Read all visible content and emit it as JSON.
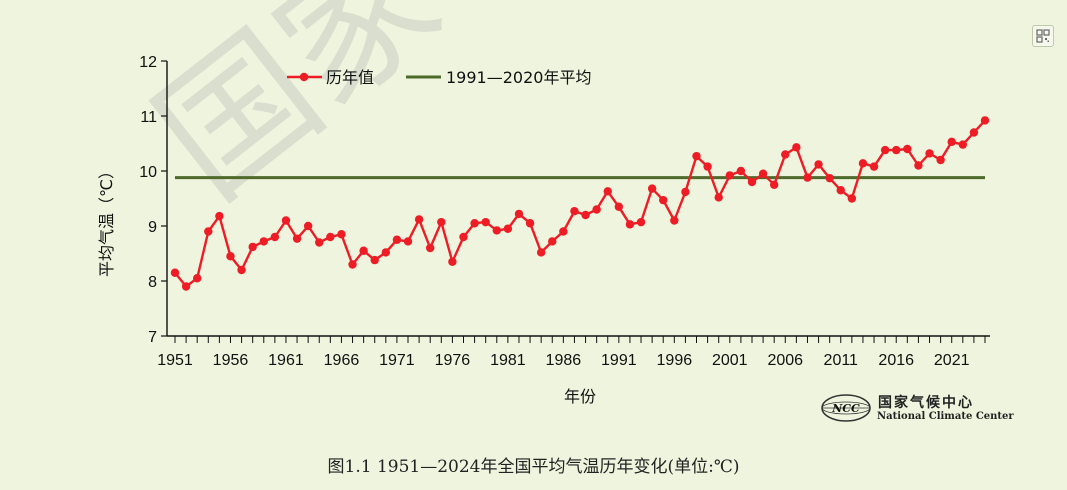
{
  "caption": "图1.1  1951—2024年全国平均气温历年变化(单位:℃)",
  "logo": {
    "cn": "国家气候中心",
    "en": "National Climate Center",
    "badge": "NCC"
  },
  "watermark": "国家",
  "colors": {
    "series": "#ee1c25",
    "average": "#4e6a2b",
    "background": "#eef4dd"
  },
  "icons": {
    "corner": "qr-code-icon"
  },
  "chart_data": {
    "type": "line",
    "title": "",
    "xlabel": "年份",
    "ylabel": "平均气温（℃）",
    "ylim": [
      7,
      12
    ],
    "xlim": [
      1951,
      2024
    ],
    "yticks": [
      "7",
      "8",
      "9",
      "10",
      "11",
      "12"
    ],
    "xticks": [
      "1951",
      "1956",
      "1961",
      "1966",
      "1971",
      "1976",
      "1981",
      "1986",
      "1991",
      "1996",
      "2001",
      "2006",
      "2011",
      "2016",
      "2021"
    ],
    "legend_position": "top",
    "grid": false,
    "series": [
      {
        "name": "历年值",
        "color": "#ee1c25",
        "x": [
          1951,
          1952,
          1953,
          1954,
          1955,
          1956,
          1957,
          1958,
          1959,
          1960,
          1961,
          1962,
          1963,
          1964,
          1965,
          1966,
          1967,
          1968,
          1969,
          1970,
          1971,
          1972,
          1973,
          1974,
          1975,
          1976,
          1977,
          1978,
          1979,
          1980,
          1981,
          1982,
          1983,
          1984,
          1985,
          1986,
          1987,
          1988,
          1989,
          1990,
          1991,
          1992,
          1993,
          1994,
          1995,
          1996,
          1997,
          1998,
          1999,
          2000,
          2001,
          2002,
          2003,
          2004,
          2005,
          2006,
          2007,
          2008,
          2009,
          2010,
          2011,
          2012,
          2013,
          2014,
          2015,
          2016,
          2017,
          2018,
          2019,
          2020,
          2021,
          2022,
          2023,
          2024
        ],
        "values": [
          8.15,
          7.9,
          8.05,
          8.9,
          9.18,
          8.45,
          8.2,
          8.62,
          8.72,
          8.8,
          9.1,
          8.77,
          9.0,
          8.7,
          8.8,
          8.85,
          8.3,
          8.55,
          8.38,
          8.52,
          8.75,
          8.72,
          9.12,
          8.6,
          9.07,
          8.35,
          8.8,
          9.05,
          9.07,
          8.92,
          8.95,
          9.22,
          9.05,
          8.52,
          8.72,
          8.9,
          9.27,
          9.2,
          9.3,
          9.63,
          9.35,
          9.03,
          9.07,
          9.68,
          9.47,
          9.1,
          9.62,
          10.27,
          10.08,
          9.52,
          9.92,
          10.0,
          9.8,
          9.95,
          9.75,
          10.3,
          10.43,
          9.88,
          10.12,
          9.87,
          9.65,
          9.5,
          10.14,
          10.08,
          10.38,
          10.38,
          10.4,
          10.1,
          10.32,
          10.2,
          10.53,
          10.48,
          10.7,
          10.92
        ]
      },
      {
        "name": "1991—2020年平均",
        "color": "#4e6a2b",
        "x": [
          1951,
          2024
        ],
        "values": [
          9.88,
          9.88
        ]
      }
    ]
  }
}
